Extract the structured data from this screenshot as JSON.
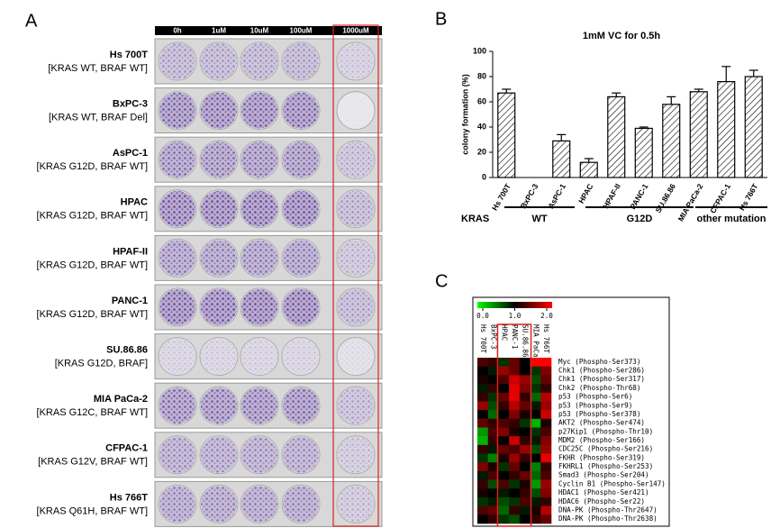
{
  "panel_a": {
    "label": "A",
    "columns": [
      "0h",
      "1uM",
      "10uM",
      "100uM",
      "1000uM"
    ],
    "rows": [
      {
        "name": "Hs 700T",
        "genotype": "[KRAS WT, BRAF WT]"
      },
      {
        "name": "BxPC-3",
        "genotype": "[KRAS WT, BRAF Del]"
      },
      {
        "name": "AsPC-1",
        "genotype": "[KRAS G12D, BRAF WT]"
      },
      {
        "name": "HPAC",
        "genotype": "[KRAS G12D, BRAF WT]"
      },
      {
        "name": "HPAF-II",
        "genotype": "[KRAS G12D, BRAF WT]"
      },
      {
        "name": "PANC-1",
        "genotype": "[KRAS G12D, BRAF WT]"
      },
      {
        "name": "SU.86.86",
        "genotype": "[KRAS G12D, BRAF]"
      },
      {
        "name": "MIA PaCa-2",
        "genotype": "[KRAS G12C, BRAF WT]"
      },
      {
        "name": "CFPAC-1",
        "genotype": "[KRAS G12V, BRAF WT]"
      },
      {
        "name": "Hs 766T",
        "genotype": "[KRAS Q61H, BRAF WT]"
      }
    ]
  },
  "chart_data": [
    {
      "type": "bar",
      "label": "B",
      "title": "1mM VC for 0.5h",
      "ylabel": "colony formation (%)",
      "categories": [
        "Hs 700T",
        "BxPC-3",
        "AsPC-1",
        "HPAC",
        "HPAF-II",
        "PANC-1",
        "SU.86.86",
        "MIA PaCa-2",
        "CFPAC-1",
        "Hs 766T"
      ],
      "values": [
        67,
        0,
        29,
        12,
        64,
        39,
        58,
        68,
        76,
        80
      ],
      "errors": [
        3,
        0,
        5,
        3,
        3,
        1,
        6,
        2,
        12,
        5
      ],
      "ylim": [
        0,
        100
      ],
      "yticks": [
        0,
        20,
        40,
        60,
        80,
        100
      ],
      "group_title": "KRAS",
      "groups": [
        "WT",
        "G12D",
        "other mutation"
      ]
    },
    {
      "type": "heatmap",
      "label": "C",
      "colorbar_ticks": [
        {
          "value": 0,
          "label": "0.0"
        },
        {
          "value": 1,
          "label": "1.0"
        },
        {
          "value": 2,
          "label": "2.0"
        }
      ],
      "x": [
        "Hs 700T",
        "BxPC-3",
        "HPAC",
        "PANC-1",
        "SU.86.86",
        "MIA PaCa-2",
        "Hs 766T"
      ],
      "y": [
        "Myc (Phospho-Ser373)",
        "Chk1 (Phospho-Ser286)",
        "Chk1 (Phospho-Ser317)",
        "Chk2 (Phospho-Thr68)",
        "p53 (Phospho-Ser6)",
        "p53 (Phospho-Ser9)",
        "p53 (Phospho-Ser378)",
        "AKT2 (Phospho-Ser474)",
        "p27Kip1 (Phospho-Thr10)",
        "MDM2 (Phospho-Ser166)",
        "CDC25C (Phospho-Ser216)",
        "FKHR (Phospho-Ser319)",
        "FKHRL1 (Phospho-Ser253)",
        "Smad3 (Phospho-Ser204)",
        "Cyclin B1 (Phospho-Ser147)",
        "HDAC1 (Phospho-Ser421)",
        "HDAC6 (Phospho-Ser22)",
        "DNA-PK (Phospho-Thr2647)",
        "DNA-PK (Phospho-Thr2638)"
      ],
      "values": [
        [
          1.3,
          1.2,
          0.8,
          1.4,
          1.0,
          2.0,
          2.0
        ],
        [
          1.0,
          0.9,
          1.6,
          1.4,
          1.0,
          0.8,
          1.5
        ],
        [
          1.1,
          1.0,
          1.3,
          1.8,
          1.6,
          0.7,
          1.4
        ],
        [
          0.9,
          1.2,
          1.0,
          1.9,
          1.5,
          0.8,
          1.2
        ],
        [
          1.2,
          0.8,
          1.4,
          1.9,
          1.2,
          0.6,
          1.7
        ],
        [
          1.6,
          0.7,
          1.2,
          1.7,
          1.4,
          0.9,
          1.6
        ],
        [
          1.0,
          0.6,
          1.0,
          1.5,
          1.1,
          1.0,
          1.8
        ],
        [
          1.4,
          1.2,
          1.3,
          1.2,
          0.8,
          0.3,
          1.1
        ],
        [
          0.4,
          1.3,
          1.5,
          1.1,
          1.0,
          0.8,
          1.3
        ],
        [
          0.3,
          1.2,
          1.0,
          1.8,
          1.2,
          0.9,
          1.5
        ],
        [
          1.2,
          0.9,
          1.4,
          1.3,
          1.6,
          0.7,
          1.6
        ],
        [
          0.8,
          0.5,
          1.1,
          1.6,
          1.2,
          1.0,
          1.9
        ],
        [
          1.5,
          1.1,
          0.8,
          1.4,
          1.0,
          0.5,
          1.2
        ],
        [
          0.9,
          1.3,
          1.0,
          1.2,
          1.4,
          0.6,
          1.3
        ],
        [
          1.2,
          0.7,
          1.3,
          0.8,
          1.1,
          0.4,
          1.6
        ],
        [
          1.1,
          1.0,
          0.9,
          1.0,
          1.2,
          0.7,
          1.5
        ],
        [
          0.8,
          0.9,
          0.7,
          0.8,
          1.3,
          0.9,
          1.2
        ],
        [
          1.3,
          1.4,
          0.6,
          1.2,
          0.9,
          1.1,
          1.7
        ],
        [
          1.0,
          1.2,
          0.8,
          0.7,
          1.0,
          1.2,
          1.4
        ]
      ]
    }
  ]
}
